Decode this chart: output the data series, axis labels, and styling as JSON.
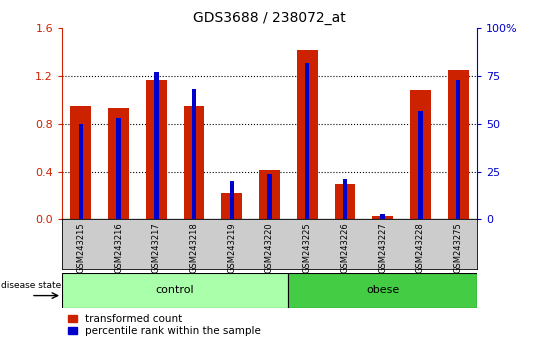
{
  "title": "GDS3688 / 238072_at",
  "samples": [
    "GSM243215",
    "GSM243216",
    "GSM243217",
    "GSM243218",
    "GSM243219",
    "GSM243220",
    "GSM243225",
    "GSM243226",
    "GSM243227",
    "GSM243228",
    "GSM243275"
  ],
  "transformed_count": [
    0.95,
    0.93,
    1.17,
    0.95,
    0.22,
    0.41,
    1.42,
    0.3,
    0.03,
    1.08,
    1.25
  ],
  "percentile_rank": [
    50,
    53,
    77,
    68,
    20,
    24,
    82,
    21,
    3,
    57,
    73
  ],
  "control_count": 6,
  "obese_count": 5,
  "left_ylim": [
    0,
    1.6
  ],
  "right_ylim": [
    0,
    100
  ],
  "left_yticks": [
    0,
    0.4,
    0.8,
    1.2,
    1.6
  ],
  "right_yticks": [
    0,
    25,
    50,
    75,
    100
  ],
  "right_yticklabels": [
    "0",
    "25",
    "50",
    "75",
    "100%"
  ],
  "bar_color_red": "#cc2200",
  "bar_color_blue": "#0000cc",
  "control_color": "#aaffaa",
  "obese_color": "#44cc44",
  "label_bg_color": "#cccccc",
  "legend_red_label": "transformed count",
  "legend_blue_label": "percentile rank within the sample",
  "disease_state_label": "disease state",
  "control_label": "control",
  "obese_label": "obese",
  "red_bar_width": 0.55,
  "blue_bar_width": 0.12
}
